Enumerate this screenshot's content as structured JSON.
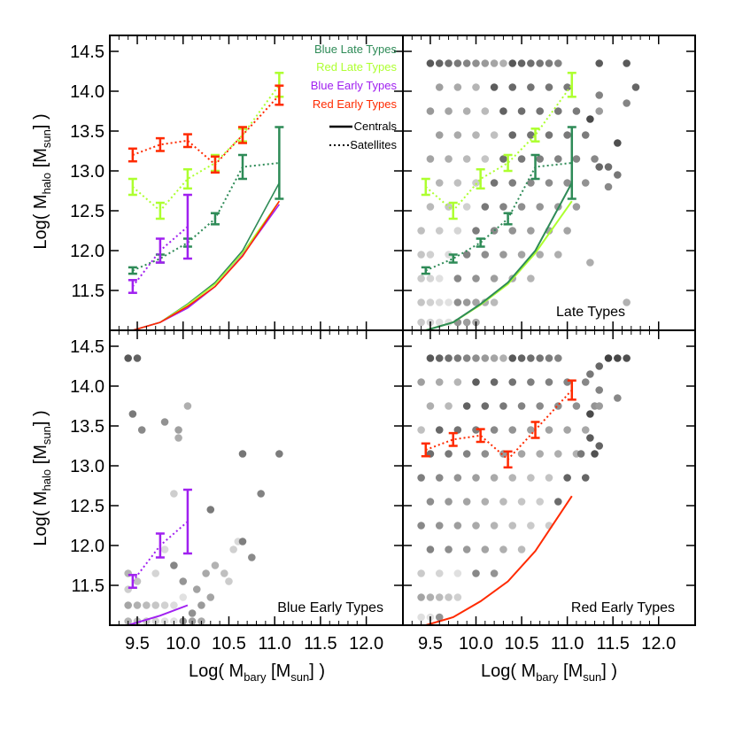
{
  "colors": {
    "blue_late": "#2e8b57",
    "red_late": "#adff2f",
    "blue_early": "#a020f0",
    "red_early": "#ff2a00",
    "frame": "#000000"
  },
  "axes": {
    "xlabel_prefix": "Log( M",
    "xlabel_sub": "bary",
    "xlabel_mid": " [M",
    "xlabel_sub2": "sun",
    "xlabel_suffix": "] )",
    "ylabel_prefix": "Log( M",
    "ylabel_sub": "halo",
    "ylabel_mid": " [M",
    "ylabel_sub2": "sun",
    "ylabel_suffix": "] )",
    "xlim": [
      9.2,
      12.4
    ],
    "ylim": [
      11.0,
      14.7
    ],
    "x_ticks": [
      "9.5",
      "10.0",
      "10.5",
      "11.0",
      "11.5",
      "12.0"
    ],
    "y_ticks": [
      "11.5",
      "12.0",
      "12.5",
      "13.0",
      "13.5",
      "14.0",
      "14.5"
    ]
  },
  "legend": {
    "entries": [
      "Blue Late Types",
      "Red Late Types",
      "Blue Early Types",
      "Red Early Types"
    ],
    "line_entries": [
      "Centrals",
      "Satellites"
    ]
  },
  "panel_labels": {
    "top_right": "Late Types",
    "bottom_left": "Blue Early Types",
    "bottom_right": "Red Early Types"
  },
  "chart_data": {
    "type": "line",
    "x_bins": [
      9.45,
      9.75,
      10.05,
      10.35,
      10.65,
      11.05
    ],
    "centrals": {
      "blue_late": [
        11.0,
        11.1,
        11.33,
        11.6,
        12.0,
        12.85
      ],
      "red_late": [
        11.0,
        11.1,
        11.32,
        11.58,
        11.97,
        12.62
      ],
      "blue_early": [
        11.0,
        11.1,
        11.28,
        11.55,
        11.94,
        12.58
      ],
      "red_early": [
        11.0,
        11.1,
        11.3,
        11.55,
        11.93,
        12.62
      ]
    },
    "satellites": {
      "blue_late": {
        "y": [
          11.75,
          11.9,
          12.1,
          12.4,
          13.05,
          13.1
        ],
        "err": [
          0.04,
          0.05,
          0.05,
          0.07,
          0.15,
          0.45
        ]
      },
      "red_late": {
        "y": [
          12.8,
          12.5,
          12.9,
          13.1,
          13.45,
          14.08
        ],
        "err": [
          0.1,
          0.1,
          0.12,
          0.1,
          0.08,
          0.15
        ]
      },
      "blue_early": {
        "y": [
          11.55,
          12.0,
          12.3
        ],
        "err": [
          0.08,
          0.15,
          0.4
        ]
      },
      "red_early": {
        "y": [
          13.2,
          13.33,
          13.38,
          13.08,
          13.45,
          13.95
        ],
        "err": [
          0.08,
          0.08,
          0.08,
          0.1,
          0.1,
          0.12
        ]
      }
    },
    "bottom_left_centrals": {
      "x": [
        9.4,
        9.75,
        10.05
      ],
      "y": [
        11.0,
        11.12,
        11.25
      ]
    },
    "scatter": {
      "top_right": [
        [
          9.5,
          14.35
        ],
        [
          9.6,
          14.35
        ],
        [
          9.7,
          14.35
        ],
        [
          9.8,
          14.35
        ],
        [
          9.9,
          14.35
        ],
        [
          10.0,
          14.35
        ],
        [
          10.1,
          14.35
        ],
        [
          10.2,
          14.35
        ],
        [
          10.3,
          14.35
        ],
        [
          10.4,
          14.35
        ],
        [
          10.5,
          14.35
        ],
        [
          10.6,
          14.35
        ],
        [
          10.7,
          14.35
        ],
        [
          10.8,
          14.35
        ],
        [
          10.9,
          14.35
        ],
        [
          9.6,
          14.05
        ],
        [
          9.8,
          14.05
        ],
        [
          10.0,
          14.05
        ],
        [
          10.2,
          14.05
        ],
        [
          10.4,
          14.05
        ],
        [
          10.6,
          14.05
        ],
        [
          10.8,
          14.05
        ],
        [
          11.0,
          14.05
        ],
        [
          9.5,
          13.75
        ],
        [
          9.7,
          13.75
        ],
        [
          9.9,
          13.75
        ],
        [
          10.1,
          13.75
        ],
        [
          10.3,
          13.75
        ],
        [
          10.5,
          13.75
        ],
        [
          10.7,
          13.75
        ],
        [
          10.9,
          13.75
        ],
        [
          11.1,
          13.75
        ],
        [
          9.6,
          13.45
        ],
        [
          9.8,
          13.45
        ],
        [
          10.0,
          13.45
        ],
        [
          10.2,
          13.45
        ],
        [
          10.4,
          13.45
        ],
        [
          10.6,
          13.45
        ],
        [
          10.8,
          13.45
        ],
        [
          11.0,
          13.45
        ],
        [
          11.2,
          13.45
        ],
        [
          9.5,
          13.15
        ],
        [
          9.7,
          13.15
        ],
        [
          9.9,
          13.15
        ],
        [
          10.1,
          13.15
        ],
        [
          10.3,
          13.15
        ],
        [
          10.5,
          13.15
        ],
        [
          10.7,
          13.15
        ],
        [
          10.9,
          13.15
        ],
        [
          11.1,
          13.15
        ],
        [
          11.3,
          13.15
        ],
        [
          9.6,
          12.85
        ],
        [
          9.8,
          12.85
        ],
        [
          10.0,
          12.85
        ],
        [
          10.2,
          12.85
        ],
        [
          10.4,
          12.85
        ],
        [
          10.6,
          12.85
        ],
        [
          10.8,
          12.85
        ],
        [
          11.0,
          12.85
        ],
        [
          11.2,
          12.85
        ],
        [
          9.5,
          12.55
        ],
        [
          9.7,
          12.55
        ],
        [
          9.9,
          12.55
        ],
        [
          10.1,
          12.55
        ],
        [
          10.3,
          12.55
        ],
        [
          10.5,
          12.55
        ],
        [
          10.7,
          12.55
        ],
        [
          10.9,
          12.55
        ],
        [
          11.1,
          12.55
        ],
        [
          9.4,
          12.25
        ],
        [
          9.6,
          12.25
        ],
        [
          9.8,
          12.25
        ],
        [
          10.0,
          12.25
        ],
        [
          10.2,
          12.25
        ],
        [
          10.4,
          12.25
        ],
        [
          10.6,
          12.25
        ],
        [
          10.8,
          12.25
        ],
        [
          11.0,
          12.25
        ],
        [
          9.4,
          11.95
        ],
        [
          9.5,
          11.95
        ],
        [
          9.7,
          11.95
        ],
        [
          9.9,
          11.95
        ],
        [
          10.1,
          11.95
        ],
        [
          10.3,
          11.95
        ],
        [
          10.5,
          11.95
        ],
        [
          10.7,
          11.95
        ],
        [
          10.9,
          11.95
        ],
        [
          9.4,
          11.65
        ],
        [
          9.5,
          11.65
        ],
        [
          9.6,
          11.65
        ],
        [
          9.8,
          11.65
        ],
        [
          10.0,
          11.65
        ],
        [
          10.2,
          11.65
        ],
        [
          10.4,
          11.65
        ],
        [
          10.6,
          11.65
        ],
        [
          9.4,
          11.35
        ],
        [
          9.5,
          11.35
        ],
        [
          9.6,
          11.35
        ],
        [
          9.7,
          11.35
        ],
        [
          9.8,
          11.35
        ],
        [
          9.9,
          11.35
        ],
        [
          10.0,
          11.35
        ],
        [
          10.1,
          11.35
        ],
        [
          10.2,
          11.35
        ],
        [
          9.4,
          11.1
        ],
        [
          9.5,
          11.1
        ],
        [
          9.6,
          11.1
        ],
        [
          9.7,
          11.1
        ],
        [
          9.8,
          11.1
        ],
        [
          9.9,
          11.1
        ],
        [
          10.0,
          11.1
        ],
        [
          11.35,
          14.35
        ],
        [
          11.65,
          14.35
        ],
        [
          11.75,
          14.05
        ],
        [
          11.35,
          13.95
        ],
        [
          11.65,
          13.85
        ],
        [
          11.35,
          13.75
        ],
        [
          11.25,
          13.65
        ],
        [
          11.55,
          13.35
        ],
        [
          11.35,
          13.05
        ],
        [
          11.45,
          13.05
        ],
        [
          11.55,
          12.95
        ],
        [
          11.45,
          12.8
        ],
        [
          11.25,
          11.85
        ],
        [
          11.65,
          11.35
        ]
      ],
      "bottom_left": [
        [
          9.4,
          14.35
        ],
        [
          9.5,
          14.35
        ],
        [
          9.45,
          13.65
        ],
        [
          9.55,
          13.45
        ],
        [
          9.8,
          13.55
        ],
        [
          9.95,
          13.45
        ],
        [
          9.95,
          13.35
        ],
        [
          10.05,
          13.75
        ],
        [
          9.9,
          12.65
        ],
        [
          10.3,
          12.45
        ],
        [
          10.65,
          13.15
        ],
        [
          10.85,
          12.65
        ],
        [
          11.05,
          13.15
        ],
        [
          9.4,
          11.65
        ],
        [
          9.5,
          11.55
        ],
        [
          9.4,
          11.45
        ],
        [
          9.7,
          11.65
        ],
        [
          9.8,
          11.95
        ],
        [
          9.9,
          11.75
        ],
        [
          10.0,
          11.55
        ],
        [
          10.15,
          11.45
        ],
        [
          10.25,
          11.65
        ],
        [
          10.35,
          11.75
        ],
        [
          10.45,
          11.65
        ],
        [
          10.5,
          11.55
        ],
        [
          10.55,
          11.95
        ],
        [
          10.6,
          12.05
        ],
        [
          10.65,
          12.05
        ],
        [
          10.75,
          11.85
        ],
        [
          9.4,
          11.25
        ],
        [
          9.5,
          11.25
        ],
        [
          9.6,
          11.25
        ],
        [
          9.7,
          11.25
        ],
        [
          9.8,
          11.25
        ],
        [
          9.9,
          11.25
        ],
        [
          10.0,
          11.35
        ],
        [
          10.1,
          11.15
        ],
        [
          10.2,
          11.25
        ],
        [
          10.3,
          11.35
        ],
        [
          9.4,
          11.05
        ],
        [
          9.5,
          11.05
        ],
        [
          9.6,
          11.05
        ],
        [
          9.7,
          11.05
        ],
        [
          9.8,
          11.05
        ],
        [
          9.9,
          11.05
        ],
        [
          10.0,
          11.05
        ],
        [
          10.1,
          11.05
        ],
        [
          10.2,
          11.05
        ]
      ],
      "bottom_right": [
        [
          9.5,
          14.35
        ],
        [
          9.6,
          14.35
        ],
        [
          9.7,
          14.35
        ],
        [
          9.8,
          14.35
        ],
        [
          9.9,
          14.35
        ],
        [
          10.0,
          14.35
        ],
        [
          10.1,
          14.35
        ],
        [
          10.2,
          14.35
        ],
        [
          10.3,
          14.35
        ],
        [
          10.4,
          14.35
        ],
        [
          10.5,
          14.35
        ],
        [
          10.6,
          14.35
        ],
        [
          10.7,
          14.35
        ],
        [
          10.8,
          14.35
        ],
        [
          10.9,
          14.35
        ],
        [
          9.4,
          14.05
        ],
        [
          9.6,
          14.05
        ],
        [
          9.8,
          14.05
        ],
        [
          10.0,
          14.05
        ],
        [
          10.2,
          14.05
        ],
        [
          10.4,
          14.05
        ],
        [
          10.6,
          14.05
        ],
        [
          10.8,
          14.05
        ],
        [
          11.0,
          14.05
        ],
        [
          11.2,
          14.05
        ],
        [
          9.5,
          13.75
        ],
        [
          9.7,
          13.75
        ],
        [
          9.9,
          13.75
        ],
        [
          10.1,
          13.75
        ],
        [
          10.3,
          13.75
        ],
        [
          10.5,
          13.75
        ],
        [
          10.7,
          13.75
        ],
        [
          10.9,
          13.75
        ],
        [
          11.1,
          13.75
        ],
        [
          11.3,
          13.75
        ],
        [
          9.4,
          13.45
        ],
        [
          9.6,
          13.45
        ],
        [
          9.8,
          13.45
        ],
        [
          10.0,
          13.45
        ],
        [
          10.2,
          13.45
        ],
        [
          10.4,
          13.45
        ],
        [
          10.6,
          13.45
        ],
        [
          10.8,
          13.45
        ],
        [
          11.0,
          13.45
        ],
        [
          11.2,
          13.45
        ],
        [
          9.5,
          13.15
        ],
        [
          9.7,
          13.15
        ],
        [
          9.9,
          13.15
        ],
        [
          10.1,
          13.15
        ],
        [
          10.3,
          13.15
        ],
        [
          10.5,
          13.15
        ],
        [
          10.7,
          13.15
        ],
        [
          10.9,
          13.15
        ],
        [
          11.1,
          13.15
        ],
        [
          11.3,
          13.15
        ],
        [
          9.4,
          12.85
        ],
        [
          9.6,
          12.85
        ],
        [
          9.8,
          12.85
        ],
        [
          10.0,
          12.85
        ],
        [
          10.2,
          12.85
        ],
        [
          10.4,
          12.85
        ],
        [
          10.6,
          12.85
        ],
        [
          10.8,
          12.85
        ],
        [
          11.0,
          12.85
        ],
        [
          11.2,
          12.85
        ],
        [
          9.5,
          12.55
        ],
        [
          9.7,
          12.55
        ],
        [
          9.9,
          12.55
        ],
        [
          10.1,
          12.55
        ],
        [
          10.3,
          12.55
        ],
        [
          10.5,
          12.55
        ],
        [
          10.7,
          12.55
        ],
        [
          10.9,
          12.55
        ],
        [
          9.4,
          12.25
        ],
        [
          9.6,
          12.25
        ],
        [
          9.8,
          12.25
        ],
        [
          10.0,
          12.25
        ],
        [
          10.2,
          12.25
        ],
        [
          10.4,
          12.25
        ],
        [
          10.6,
          12.25
        ],
        [
          10.8,
          12.25
        ],
        [
          9.5,
          11.95
        ],
        [
          9.7,
          11.95
        ],
        [
          9.9,
          11.95
        ],
        [
          10.1,
          11.95
        ],
        [
          10.3,
          11.95
        ],
        [
          10.5,
          11.95
        ],
        [
          9.4,
          11.65
        ],
        [
          9.6,
          11.65
        ],
        [
          9.8,
          11.65
        ],
        [
          10.0,
          11.65
        ],
        [
          10.2,
          11.65
        ],
        [
          9.4,
          11.35
        ],
        [
          9.5,
          11.35
        ],
        [
          9.6,
          11.35
        ],
        [
          9.7,
          11.35
        ],
        [
          9.8,
          11.35
        ],
        [
          9.4,
          11.1
        ],
        [
          9.5,
          11.1
        ],
        [
          9.6,
          11.1
        ],
        [
          11.45,
          14.35
        ],
        [
          11.55,
          14.35
        ],
        [
          11.65,
          14.35
        ],
        [
          11.35,
          14.25
        ],
        [
          11.25,
          14.15
        ],
        [
          11.35,
          13.95
        ],
        [
          11.55,
          13.85
        ],
        [
          11.35,
          13.75
        ],
        [
          11.25,
          13.65
        ],
        [
          11.25,
          13.35
        ],
        [
          11.35,
          13.25
        ],
        [
          11.15,
          13.15
        ]
      ]
    }
  }
}
